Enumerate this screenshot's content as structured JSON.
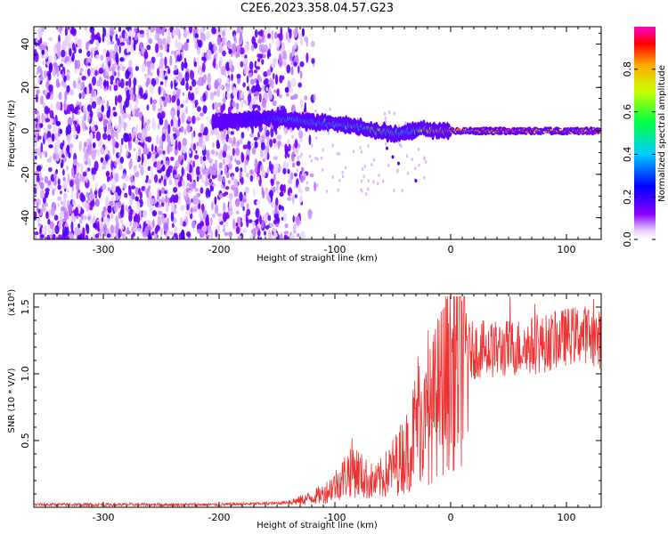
{
  "title": "C2E6.2023.358.04.57.G23",
  "chart_data": [
    {
      "type": "heatmap",
      "xlabel": "Height of straight line (km)",
      "ylabel": "Frequency (Hz)",
      "xlim": [
        -360,
        130
      ],
      "ylim": [
        -50,
        48
      ],
      "x_ticks": [
        "-300",
        "-200",
        "-100",
        "0",
        "100"
      ],
      "y_ticks": [
        "-40",
        "-20",
        "0",
        "20",
        "40"
      ],
      "colorbar": {
        "label": "Normalized spectral amplitude",
        "range": [
          0,
          1
        ],
        "ticks": [
          "0.0",
          "0.2",
          "0.4",
          "0.6",
          "0.8"
        ],
        "colormap": "rainbow"
      },
      "noise_region_x": [
        -360,
        -145
      ],
      "ridge": {
        "x": [
          -205,
          -180,
          -160,
          -140,
          -120,
          -100,
          -80,
          -65,
          -50,
          -40,
          -25,
          -10,
          0,
          20,
          40,
          60,
          80,
          100,
          130
        ],
        "frequency": [
          4,
          5,
          6,
          5,
          4,
          3,
          2,
          0,
          -1,
          -1,
          1,
          0,
          0,
          0,
          0,
          0,
          0,
          0,
          0
        ],
        "amplitude": [
          0.15,
          0.2,
          0.3,
          0.45,
          0.5,
          0.45,
          0.5,
          0.65,
          0.55,
          0.45,
          0.7,
          0.8,
          0.85,
          0.85,
          0.9,
          0.9,
          0.85,
          0.9,
          0.95
        ]
      }
    },
    {
      "type": "line",
      "xlabel": "Height of straight line (km)",
      "ylabel": "SNR (10 * V/V)",
      "yscale_note": "(x10⁴)",
      "xlim": [
        -360,
        130
      ],
      "ylim": [
        0,
        1.6
      ],
      "x_ticks": [
        "-300",
        "-200",
        "-100",
        "0",
        "100"
      ],
      "y_ticks": [
        "0.5",
        "1.0",
        "1.5"
      ],
      "color": "#ee3333",
      "envelope": {
        "x": [
          -360,
          -200,
          -150,
          -130,
          -110,
          -95,
          -85,
          -75,
          -65,
          -55,
          -45,
          -35,
          -28,
          -22,
          -15,
          -10,
          -5,
          0,
          10,
          20,
          40,
          60,
          80,
          100,
          115,
          130
        ],
        "base": [
          0.02,
          0.02,
          0.03,
          0.05,
          0.1,
          0.2,
          0.3,
          0.22,
          0.18,
          0.25,
          0.35,
          0.45,
          0.7,
          0.6,
          0.75,
          0.85,
          0.95,
          1.05,
          1.15,
          1.18,
          1.18,
          1.2,
          1.22,
          1.28,
          1.3,
          1.25
        ]
      }
    }
  ]
}
